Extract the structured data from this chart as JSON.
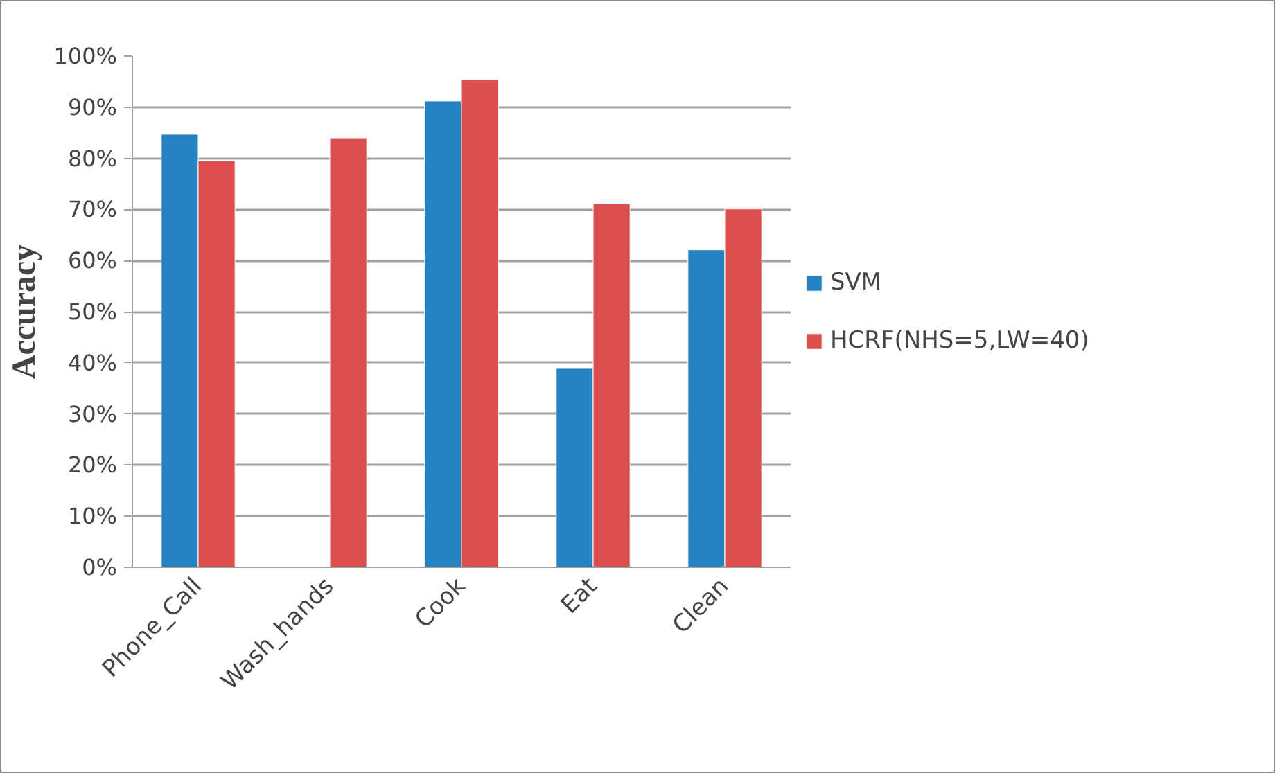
{
  "chart_data": {
    "type": "bar",
    "ylabel": "Accuracy",
    "categories": [
      "Phone_Call",
      "Wash_hands",
      "Cook",
      "Eat",
      "Clean"
    ],
    "series": [
      {
        "name": "SVM",
        "color": "#2681c0",
        "values": [
          84.7,
          null,
          91.2,
          38.9,
          62.1
        ]
      },
      {
        "name": "HCRF(NHS=5,LW=40)",
        "color": "#dc4f4f",
        "values": [
          79.5,
          84,
          95.4,
          71.1,
          70.1
        ]
      }
    ],
    "ylim": [
      0,
      100
    ],
    "yticks": [
      {
        "value": 0,
        "label": "0%"
      },
      {
        "value": 10,
        "label": "10%"
      },
      {
        "value": 20,
        "label": "20%"
      },
      {
        "value": 30,
        "label": "30%"
      },
      {
        "value": 40,
        "label": "40%"
      },
      {
        "value": 50,
        "label": "50%"
      },
      {
        "value": 60,
        "label": "60%"
      },
      {
        "value": 70,
        "label": "70%"
      },
      {
        "value": 80,
        "label": "80%"
      },
      {
        "value": 90,
        "label": "90%"
      },
      {
        "value": 100,
        "label": "100%"
      }
    ],
    "grid": "y",
    "legend": "right"
  }
}
